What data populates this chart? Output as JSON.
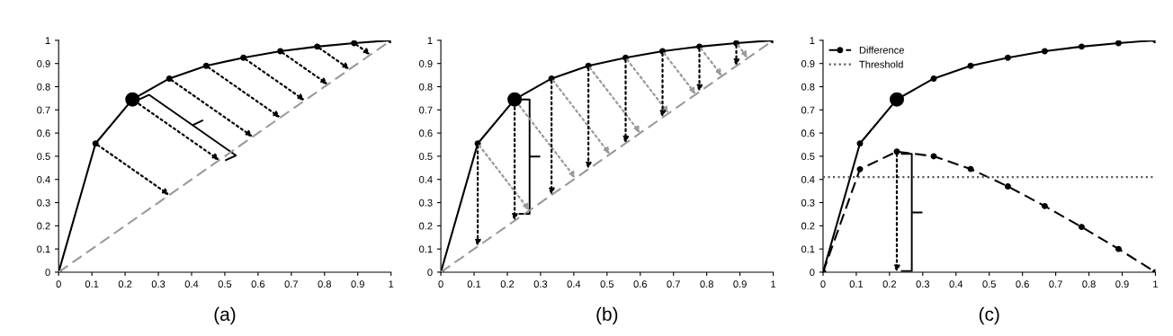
{
  "chart_data": [
    {
      "type": "line",
      "xlabel": "(a)",
      "xlim": [
        0,
        1
      ],
      "ylim": [
        0,
        1
      ],
      "xticks": [
        0,
        0.1,
        0.2,
        0.3,
        0.4,
        0.5,
        0.6,
        0.7,
        0.8,
        0.9,
        1
      ],
      "yticks": [
        0,
        0.1,
        0.2,
        0.3,
        0.4,
        0.5,
        0.6,
        0.7,
        0.8,
        0.9,
        1
      ],
      "grid": false,
      "legend": false,
      "x": [
        0,
        0.111,
        0.222,
        0.333,
        0.444,
        0.556,
        0.667,
        0.778,
        0.889,
        1
      ],
      "series": [
        {
          "color": "#000000",
          "values": [
            0,
            0.555,
            0.745,
            0.835,
            0.89,
            0.925,
            0.953,
            0.973,
            0.988,
            1
          ],
          "marker": "circle",
          "line_style": "solid"
        },
        {
          "color": "#999999",
          "x": [
            0,
            1
          ],
          "values": [
            0,
            1
          ],
          "marker": "none",
          "line_style": "dashed"
        },
        {
          "type": "scatter",
          "color": "#000000",
          "x": [
            0.222
          ],
          "values": [
            0.745
          ],
          "marker": "circle"
        }
      ]
    },
    {
      "type": "line",
      "xlabel": "(b)",
      "xlim": [
        0,
        1
      ],
      "ylim": [
        0,
        1
      ],
      "xticks": [
        0,
        0.1,
        0.2,
        0.3,
        0.4,
        0.5,
        0.6,
        0.7,
        0.8,
        0.9,
        1
      ],
      "yticks": [
        0,
        0.1,
        0.2,
        0.3,
        0.4,
        0.5,
        0.6,
        0.7,
        0.8,
        0.9,
        1
      ],
      "grid": false,
      "legend": false,
      "x": [
        0,
        0.111,
        0.222,
        0.333,
        0.444,
        0.556,
        0.667,
        0.778,
        0.889,
        1
      ],
      "series": [
        {
          "color": "#000000",
          "values": [
            0,
            0.555,
            0.745,
            0.835,
            0.89,
            0.925,
            0.953,
            0.973,
            0.988,
            1
          ],
          "marker": "circle",
          "line_style": "solid"
        },
        {
          "color": "#999999",
          "x": [
            0,
            1
          ],
          "values": [
            0,
            1
          ],
          "marker": "none",
          "line_style": "dashed"
        },
        {
          "type": "scatter",
          "color": "#000000",
          "x": [
            0.222
          ],
          "values": [
            0.745
          ],
          "marker": "circle"
        }
      ]
    },
    {
      "type": "line",
      "xlabel": "(c)",
      "xlim": [
        0,
        1
      ],
      "ylim": [
        0,
        1
      ],
      "xticks": [
        0,
        0.1,
        0.2,
        0.3,
        0.4,
        0.5,
        0.6,
        0.7,
        0.8,
        0.9,
        1
      ],
      "yticks": [
        0,
        0.1,
        0.2,
        0.3,
        0.4,
        0.5,
        0.6,
        0.7,
        0.8,
        0.9,
        1
      ],
      "grid": false,
      "legend": "top left",
      "x": [
        0,
        0.111,
        0.222,
        0.333,
        0.444,
        0.556,
        0.667,
        0.778,
        0.889,
        1
      ],
      "series": [
        {
          "color": "#000000",
          "values": [
            0,
            0.555,
            0.745,
            0.835,
            0.89,
            0.925,
            0.953,
            0.973,
            0.988,
            1
          ],
          "marker": "circle",
          "line_style": "solid"
        },
        {
          "name": "Difference",
          "color": "#000000",
          "values": [
            0,
            0.444,
            0.52,
            0.5,
            0.445,
            0.37,
            0.285,
            0.195,
            0.1,
            0
          ],
          "marker": "circle",
          "line_style": "dashed"
        },
        {
          "name": "Threshold",
          "color": "#555555",
          "x": [
            0,
            1
          ],
          "values": [
            0.41,
            0.41
          ],
          "marker": "none",
          "line_style": "dotted"
        },
        {
          "type": "scatter",
          "color": "#000000",
          "x": [
            0.222
          ],
          "values": [
            0.745
          ],
          "marker": "circle"
        }
      ]
    }
  ]
}
